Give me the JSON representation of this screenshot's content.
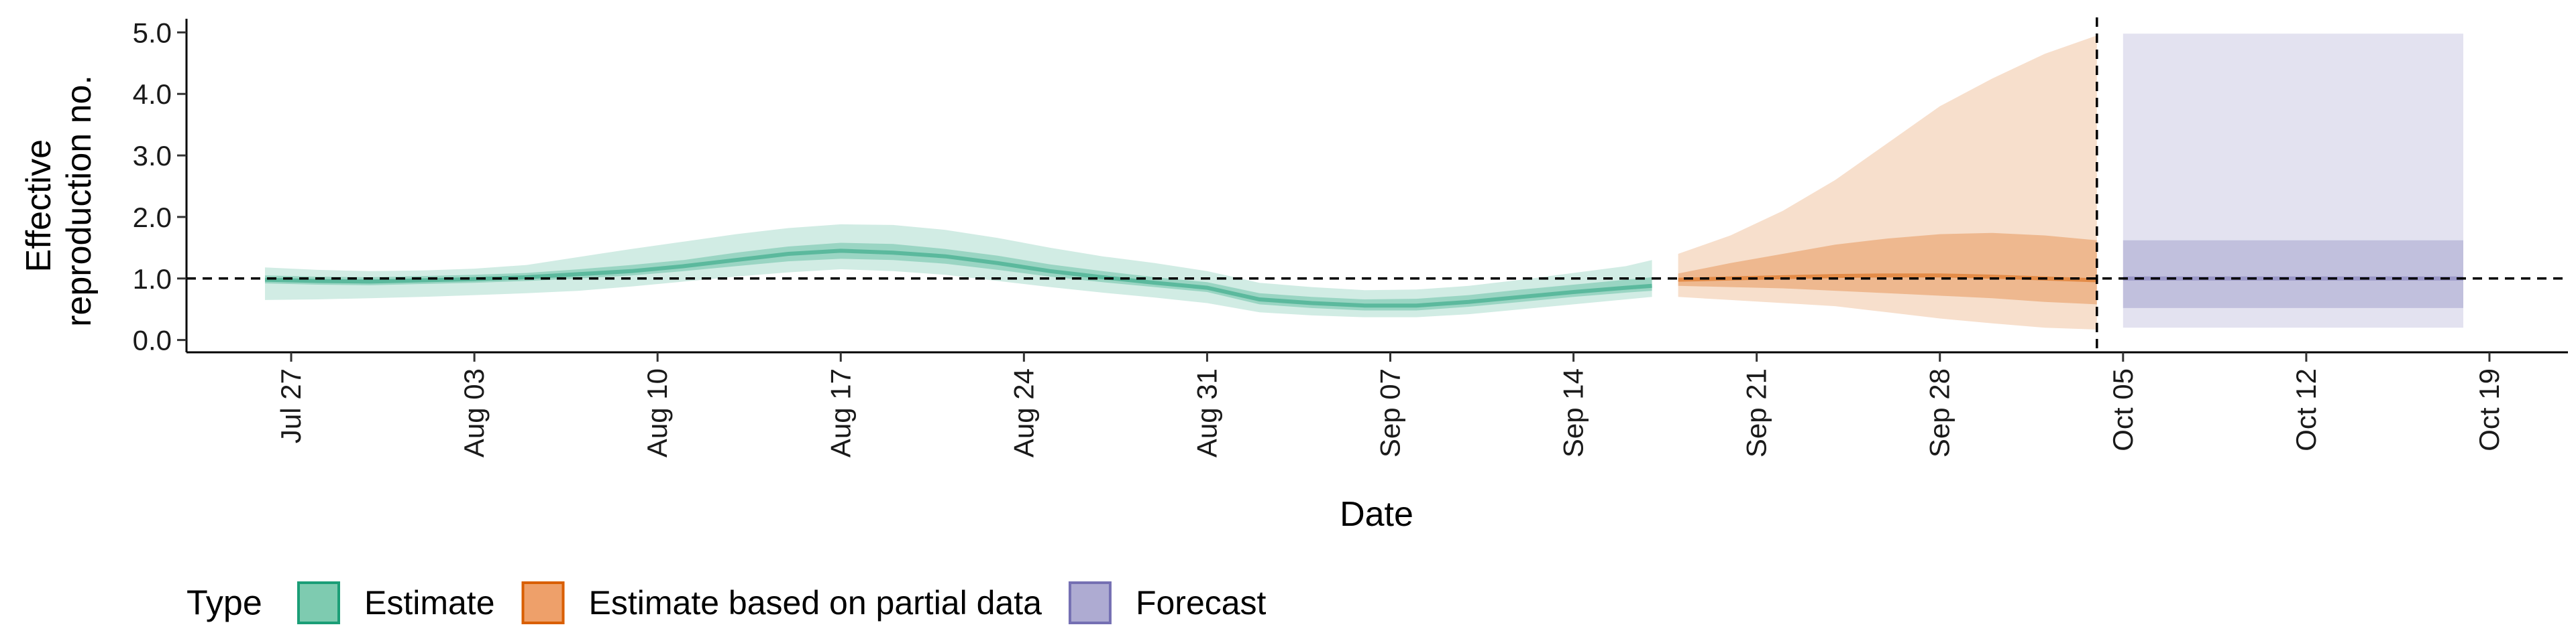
{
  "chart_data": {
    "type": "area",
    "xlabel": "Date",
    "ylabel_lines": [
      "Effective",
      "reproduction no."
    ],
    "x_range": [
      "2020-07-23",
      "2020-10-22"
    ],
    "ylim": [
      -0.2,
      5.2
    ],
    "y_ticks": [
      0.0,
      1.0,
      2.0,
      3.0,
      4.0,
      5.0
    ],
    "y_tick_labels": [
      "0.0",
      "1.0",
      "2.0",
      "3.0",
      "4.0",
      "5.0"
    ],
    "x_ticks": [
      "2020-07-27",
      "2020-08-03",
      "2020-08-10",
      "2020-08-17",
      "2020-08-24",
      "2020-08-31",
      "2020-09-07",
      "2020-09-14",
      "2020-09-21",
      "2020-09-28",
      "2020-10-05",
      "2020-10-12",
      "2020-10-19"
    ],
    "x_tick_labels": [
      "Jul 27",
      "Aug 03",
      "Aug 10",
      "Aug 17",
      "Aug 24",
      "Aug 31",
      "Sep 07",
      "Sep 14",
      "Sep 21",
      "Sep 28",
      "Oct 05",
      "Oct 12",
      "Oct 19"
    ],
    "reference_line_y": 1.0,
    "vertical_line_x": "2020-10-04",
    "grid": false,
    "legend": {
      "title": "Type",
      "placement": "bottom",
      "entries": [
        {
          "label": "Estimate",
          "fill": "#7ecbb0",
          "border": "#1b9e77"
        },
        {
          "label": "Estimate based on partial data",
          "fill": "#eea06a",
          "border": "#d95f02"
        },
        {
          "label": "Forecast",
          "fill": "#aeabd2",
          "border": "#7570b3"
        }
      ]
    },
    "series": [
      {
        "type_key": "Estimate",
        "color": "#1b9e77",
        "x": [
          "2020-07-26",
          "2020-07-28",
          "2020-07-30",
          "2020-08-01",
          "2020-08-03",
          "2020-08-05",
          "2020-08-07",
          "2020-08-09",
          "2020-08-11",
          "2020-08-13",
          "2020-08-15",
          "2020-08-17",
          "2020-08-19",
          "2020-08-21",
          "2020-08-23",
          "2020-08-25",
          "2020-08-27",
          "2020-08-29",
          "2020-08-31",
          "2020-09-02",
          "2020-09-04",
          "2020-09-06",
          "2020-09-08",
          "2020-09-10",
          "2020-09-12",
          "2020-09-14",
          "2020-09-16",
          "2020-09-17"
        ],
        "median": [
          0.98,
          0.96,
          0.95,
          0.97,
          0.99,
          1.02,
          1.07,
          1.12,
          1.2,
          1.3,
          1.4,
          1.45,
          1.42,
          1.36,
          1.25,
          1.12,
          1.02,
          0.93,
          0.85,
          0.66,
          0.6,
          0.56,
          0.56,
          0.62,
          0.7,
          0.78,
          0.85,
          0.88
        ],
        "lower50": [
          0.92,
          0.9,
          0.89,
          0.91,
          0.93,
          0.96,
          1.0,
          1.05,
          1.12,
          1.2,
          1.28,
          1.32,
          1.3,
          1.24,
          1.14,
          1.03,
          0.94,
          0.86,
          0.78,
          0.58,
          0.52,
          0.48,
          0.48,
          0.54,
          0.62,
          0.7,
          0.77,
          0.8
        ],
        "upper50": [
          1.05,
          1.03,
          1.02,
          1.04,
          1.06,
          1.09,
          1.15,
          1.22,
          1.3,
          1.42,
          1.52,
          1.58,
          1.56,
          1.48,
          1.37,
          1.23,
          1.12,
          1.02,
          0.94,
          0.76,
          0.7,
          0.66,
          0.67,
          0.73,
          0.82,
          0.9,
          0.98,
          1.02
        ],
        "lower90": [
          0.65,
          0.66,
          0.68,
          0.7,
          0.73,
          0.76,
          0.8,
          0.87,
          0.95,
          1.03,
          1.1,
          1.15,
          1.12,
          1.06,
          0.96,
          0.86,
          0.77,
          0.69,
          0.6,
          0.45,
          0.4,
          0.37,
          0.37,
          0.42,
          0.5,
          0.58,
          0.66,
          0.7
        ],
        "upper90": [
          1.18,
          1.14,
          1.12,
          1.13,
          1.16,
          1.22,
          1.35,
          1.48,
          1.6,
          1.72,
          1.82,
          1.88,
          1.87,
          1.79,
          1.66,
          1.5,
          1.36,
          1.25,
          1.12,
          0.93,
          0.86,
          0.81,
          0.82,
          0.88,
          0.98,
          1.09,
          1.2,
          1.3
        ]
      },
      {
        "type_key": "Estimate based on partial data",
        "color": "#d95f02",
        "x": [
          "2020-09-18",
          "2020-09-20",
          "2020-09-22",
          "2020-09-24",
          "2020-09-26",
          "2020-09-28",
          "2020-09-30",
          "2020-10-02",
          "2020-10-04"
        ],
        "median": [
          0.98,
          1.0,
          1.02,
          1.04,
          1.05,
          1.05,
          1.03,
          1.0,
          0.97
        ],
        "lower50": [
          0.88,
          0.86,
          0.84,
          0.8,
          0.76,
          0.72,
          0.68,
          0.62,
          0.58
        ],
        "upper50": [
          1.08,
          1.25,
          1.4,
          1.55,
          1.65,
          1.72,
          1.74,
          1.7,
          1.62
        ],
        "lower90": [
          0.7,
          0.65,
          0.6,
          0.55,
          0.45,
          0.35,
          0.27,
          0.2,
          0.17
        ],
        "upper90": [
          1.4,
          1.7,
          2.1,
          2.6,
          3.2,
          3.8,
          4.25,
          4.65,
          4.95
        ]
      },
      {
        "type_key": "Forecast",
        "color": "#7570b3",
        "x": [
          "2020-10-05",
          "2020-10-18"
        ],
        "median": [
          1.0,
          1.0
        ],
        "lower50": [
          0.52,
          0.52
        ],
        "upper50": [
          1.62,
          1.62
        ],
        "lower90": [
          0.2,
          0.2
        ],
        "upper90": [
          4.98,
          4.98
        ]
      }
    ]
  }
}
